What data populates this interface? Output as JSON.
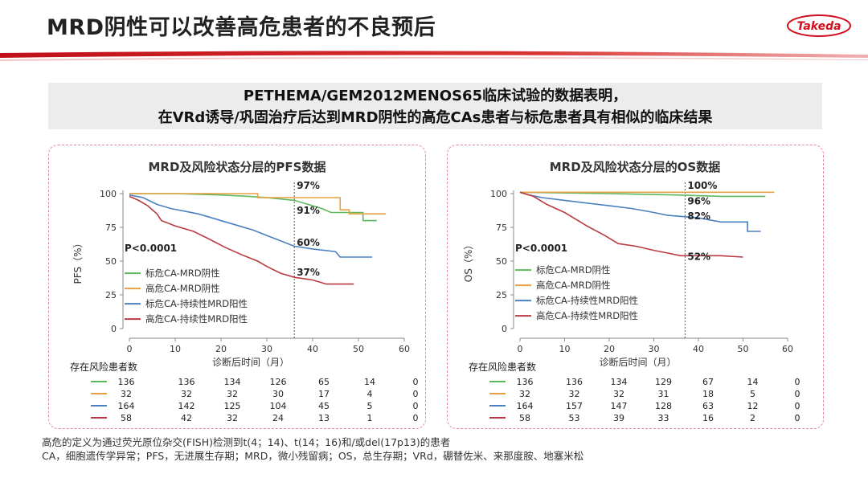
{
  "header": {
    "title": "MRD阴性可以改善高危患者的不良预后",
    "logo_text": "Takeda"
  },
  "banner": {
    "line1": "PETHEMA/GEM2012MENOS65临床试验的数据表明，",
    "line2": "在VRd诱导/巩固治疗后达到MRD阴性的高危CAs患者与标危患者具有相似的临床结果"
  },
  "colors": {
    "green": "#5cb85c",
    "orange": "#e8a040",
    "blue": "#4a80c0",
    "red": "#b83a40"
  },
  "chart_data": [
    {
      "type": "line",
      "title": "MRD及风险状态分层的PFS数据",
      "xlabel": "诊断后时间（月）",
      "ylabel": "PFS（%）",
      "xlim": [
        0,
        60
      ],
      "ylim": [
        0,
        100
      ],
      "x_ticks": [
        0,
        10,
        20,
        30,
        40,
        50,
        60
      ],
      "y_ticks": [
        0,
        25,
        50,
        75,
        100
      ],
      "p_value": "P<0.0001",
      "vline_x": 36,
      "annotations": [
        {
          "text": "97%",
          "x": 36,
          "y": 97
        },
        {
          "text": "91%",
          "x": 36,
          "y": 91
        },
        {
          "text": "60%",
          "x": 36,
          "y": 60
        },
        {
          "text": "37%",
          "x": 36,
          "y": 37
        }
      ],
      "series": [
        {
          "name": "标危CA-MRD阴性",
          "color": "#5cb85c",
          "points": [
            [
              0,
              100
            ],
            [
              10,
              100
            ],
            [
              20,
              99
            ],
            [
              26,
              98
            ],
            [
              30,
              97
            ],
            [
              36,
              95
            ],
            [
              40,
              91
            ],
            [
              42,
              89
            ],
            [
              44,
              86
            ],
            [
              47,
              86
            ],
            [
              51,
              86
            ],
            [
              51,
              80
            ],
            [
              54,
              80
            ]
          ]
        },
        {
          "name": "高危CA-MRD阴性",
          "color": "#e8a040",
          "points": [
            [
              0,
              100
            ],
            [
              28,
              100
            ],
            [
              28,
              97
            ],
            [
              46,
              97
            ],
            [
              46,
              88
            ],
            [
              48,
              88
            ],
            [
              48,
              85
            ],
            [
              56,
              85
            ]
          ]
        },
        {
          "name": "标危CA-持续性MRD阳性",
          "color": "#4a80c0",
          "points": [
            [
              0,
              99
            ],
            [
              3,
              97
            ],
            [
              6,
              92
            ],
            [
              9,
              89
            ],
            [
              12,
              87
            ],
            [
              15,
              85
            ],
            [
              18,
              82
            ],
            [
              21,
              79
            ],
            [
              24,
              76
            ],
            [
              27,
              73
            ],
            [
              30,
              69
            ],
            [
              33,
              65
            ],
            [
              36,
              61
            ],
            [
              40,
              59
            ],
            [
              45,
              57
            ],
            [
              46,
              53
            ],
            [
              53,
              53
            ]
          ]
        },
        {
          "name": "高危CA-持续性MRD阳性",
          "color": "#b83a40",
          "points": [
            [
              0,
              98
            ],
            [
              2,
              95
            ],
            [
              4,
              91
            ],
            [
              6,
              85
            ],
            [
              7,
              80
            ],
            [
              10,
              76
            ],
            [
              14,
              72
            ],
            [
              17,
              67
            ],
            [
              21,
              60
            ],
            [
              25,
              54
            ],
            [
              28,
              50
            ],
            [
              30,
              46
            ],
            [
              33,
              41
            ],
            [
              36,
              38
            ],
            [
              40,
              36
            ],
            [
              43,
              33
            ],
            [
              49,
              33
            ]
          ]
        }
      ],
      "risk_table": {
        "title": "存在风险患者数",
        "x": [
          0,
          10,
          20,
          30,
          40,
          50,
          60
        ],
        "rows": [
          {
            "color": "#5cb85c",
            "values": [
              "136",
              "136",
              "134",
              "126",
              "65",
              "14",
              "0"
            ]
          },
          {
            "color": "#e8a040",
            "values": [
              "32",
              "32",
              "32",
              "30",
              "17",
              "4",
              "0"
            ]
          },
          {
            "color": "#4a80c0",
            "values": [
              "164",
              "142",
              "125",
              "104",
              "45",
              "5",
              "0"
            ]
          },
          {
            "color": "#b83a40",
            "values": [
              "58",
              "42",
              "32",
              "24",
              "13",
              "1",
              "0"
            ]
          }
        ]
      }
    },
    {
      "type": "line",
      "title": "MRD及风险状态分层的OS数据",
      "xlabel": "诊断后时间（月）",
      "ylabel": "OS（%）",
      "xlim": [
        0,
        60
      ],
      "ylim": [
        0,
        100
      ],
      "x_ticks": [
        0,
        10,
        20,
        30,
        40,
        50,
        60
      ],
      "y_ticks": [
        0,
        25,
        50,
        75,
        100
      ],
      "p_value": "P<0.0001",
      "vline_x": 37,
      "annotations": [
        {
          "text": "100%",
          "x": 37,
          "y": 100
        },
        {
          "text": "96%",
          "x": 37,
          "y": 96
        },
        {
          "text": "82%",
          "x": 37,
          "y": 82
        },
        {
          "text": "52%",
          "x": 37,
          "y": 52
        }
      ],
      "series": [
        {
          "name": "标危CA-MRD阴性",
          "color": "#5cb85c",
          "points": [
            [
              0,
              101
            ],
            [
              20,
              100
            ],
            [
              35,
              99
            ],
            [
              45,
              98
            ],
            [
              55,
              98
            ]
          ]
        },
        {
          "name": "高危CA-MRD阴性",
          "color": "#e8a040",
          "points": [
            [
              0,
              101
            ],
            [
              57,
              101
            ]
          ]
        },
        {
          "name": "标危CA-持续性MRD阳性",
          "color": "#4a80c0",
          "points": [
            [
              0,
              101
            ],
            [
              2,
              99
            ],
            [
              5,
              97
            ],
            [
              10,
              95
            ],
            [
              15,
              93
            ],
            [
              20,
              91
            ],
            [
              25,
              89
            ],
            [
              30,
              86
            ],
            [
              33,
              84
            ],
            [
              40,
              82
            ],
            [
              45,
              79
            ],
            [
              51,
              79
            ],
            [
              51,
              72
            ],
            [
              54,
              72
            ]
          ]
        },
        {
          "name": "高危CA-持续性MRD阳性",
          "color": "#b83a40",
          "points": [
            [
              0,
              101
            ],
            [
              3,
              98
            ],
            [
              6,
              92
            ],
            [
              10,
              86
            ],
            [
              12,
              82
            ],
            [
              15,
              76
            ],
            [
              19,
              69
            ],
            [
              22,
              63
            ],
            [
              26,
              61
            ],
            [
              30,
              58
            ],
            [
              33,
              56
            ],
            [
              36,
              54
            ],
            [
              45,
              54
            ],
            [
              50,
              53
            ]
          ]
        }
      ],
      "risk_table": {
        "title": "存在风险患者数",
        "x": [
          0,
          10,
          20,
          30,
          40,
          50,
          60
        ],
        "rows": [
          {
            "color": "#5cb85c",
            "values": [
              "136",
              "136",
              "134",
              "129",
              "67",
              "14",
              "0"
            ]
          },
          {
            "color": "#e8a040",
            "values": [
              "32",
              "32",
              "32",
              "31",
              "18",
              "5",
              "0"
            ]
          },
          {
            "color": "#4a80c0",
            "values": [
              "164",
              "157",
              "147",
              "128",
              "63",
              "12",
              "0"
            ]
          },
          {
            "color": "#b83a40",
            "values": [
              "58",
              "53",
              "39",
              "33",
              "16",
              "2",
              "0"
            ]
          }
        ]
      }
    }
  ],
  "footnotes": {
    "line1": "高危的定义为通过荧光原位杂交(FISH)检测到t(4；14)、t(14；16)和/或del(17p13)的患者",
    "line2": "CA，细胞遗传学异常；PFS，无进展生存期；MRD，微小残留病；OS，总生存期；VRd，硼替佐米、来那度胺、地塞米松"
  }
}
